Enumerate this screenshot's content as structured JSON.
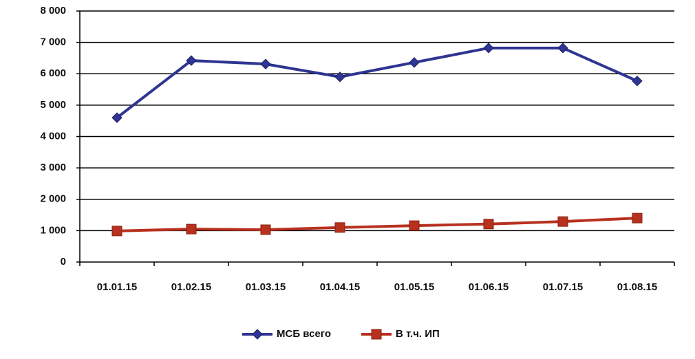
{
  "chart_data": {
    "type": "line",
    "categories": [
      "01.01.15",
      "01.02.15",
      "01.03.15",
      "01.04.15",
      "01.05.15",
      "01.06.15",
      "01.07.15",
      "01.08.15"
    ],
    "series": [
      {
        "name": "МСБ всего",
        "color": "#2f3592",
        "marker": "diamond",
        "values": [
          4600,
          6420,
          6310,
          5900,
          6360,
          6820,
          6820,
          5770
        ]
      },
      {
        "name": "В т.ч. ИП",
        "color": "#b8311f",
        "marker": "square",
        "values": [
          990,
          1050,
          1030,
          1100,
          1160,
          1210,
          1290,
          1400
        ]
      }
    ],
    "ylim": [
      0,
      8000
    ],
    "yticks": [
      0,
      {
        "value": 1000,
        "label": "1 000"
      },
      {
        "value": 2000,
        "label": "2 000"
      },
      {
        "value": 3000,
        "label": "3 000"
      },
      {
        "value": 4000,
        "label": "4 000"
      },
      {
        "value": 5000,
        "label": "5 000"
      },
      {
        "value": 6000,
        "label": "6 000"
      },
      {
        "value": 7000,
        "label": "7 000"
      },
      {
        "value": 8000,
        "label": "8 000"
      }
    ],
    "grid": true,
    "legend": "bottom"
  }
}
